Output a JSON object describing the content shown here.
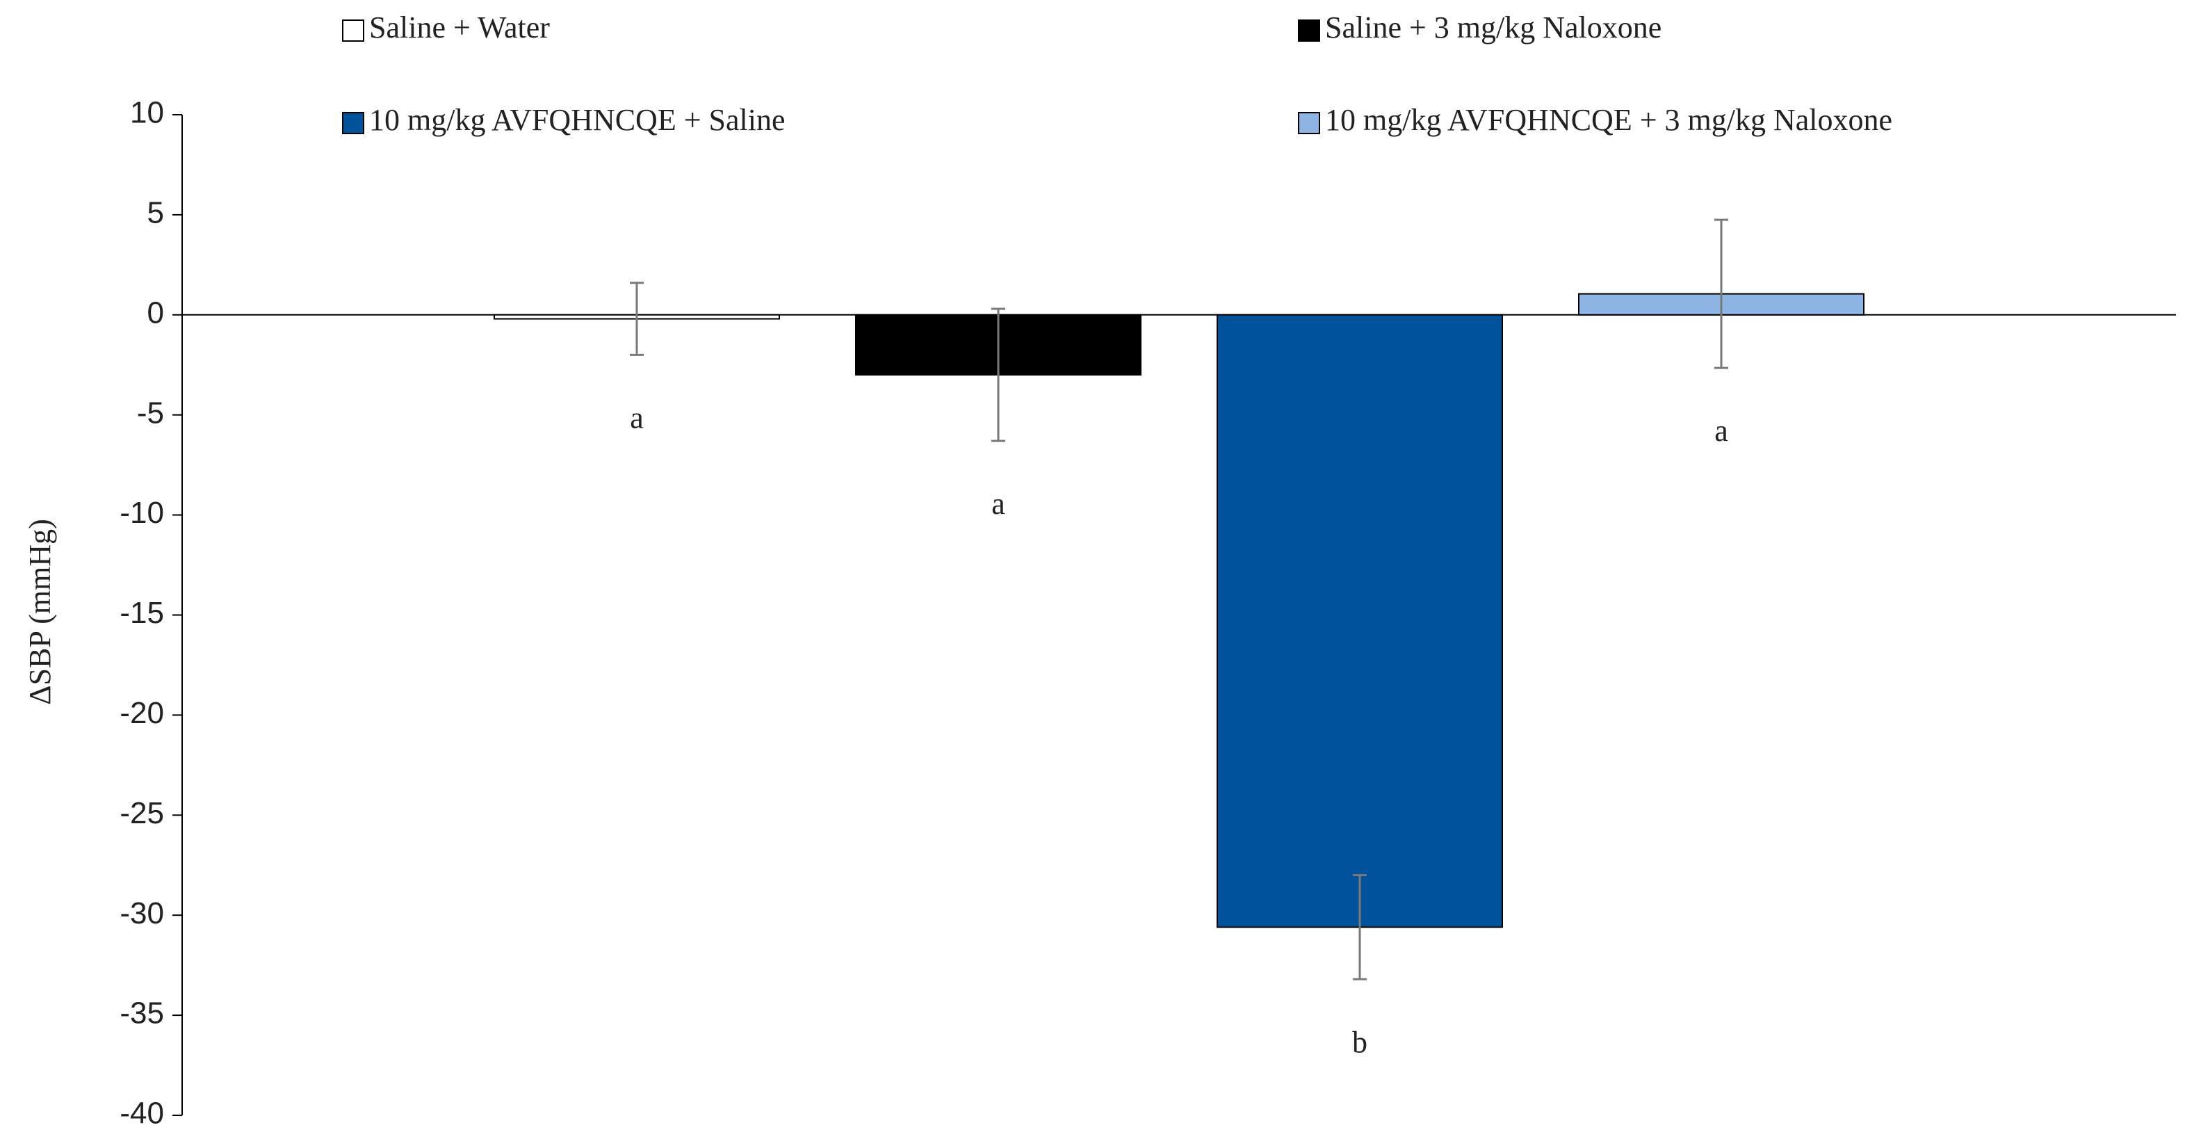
{
  "chart_data": {
    "type": "bar",
    "ylabel": "ΔSBP (mmHg)",
    "categories": [
      null
    ],
    "series": [
      {
        "name": "Saline + Water",
        "color": "#ffffff",
        "values": [
          -0.2
        ],
        "errors": [
          1.8
        ]
      },
      {
        "name": "Saline + 3 mg/kg Naloxone",
        "color": "#000000",
        "values": [
          -3.0
        ],
        "errors": [
          3.3
        ]
      },
      {
        "name": "10 mg/kg AVFQHNCQE + Saline",
        "color": "#00529b",
        "values": [
          -30.6
        ],
        "errors": [
          2.6
        ]
      },
      {
        "name": "10 mg/kg AVFQHNCQE + 3 mg/kg Naloxone",
        "color": "#8db4e2",
        "values": [
          1.05
        ],
        "errors": [
          3.7
        ]
      }
    ],
    "annotations": [
      "a",
      "a",
      "b",
      "a"
    ],
    "ylim": [
      -40,
      10
    ],
    "yticks": [
      -40,
      -35,
      -30,
      -25,
      -20,
      -15,
      -10,
      -5,
      0,
      5,
      10
    ],
    "legend": "top"
  }
}
